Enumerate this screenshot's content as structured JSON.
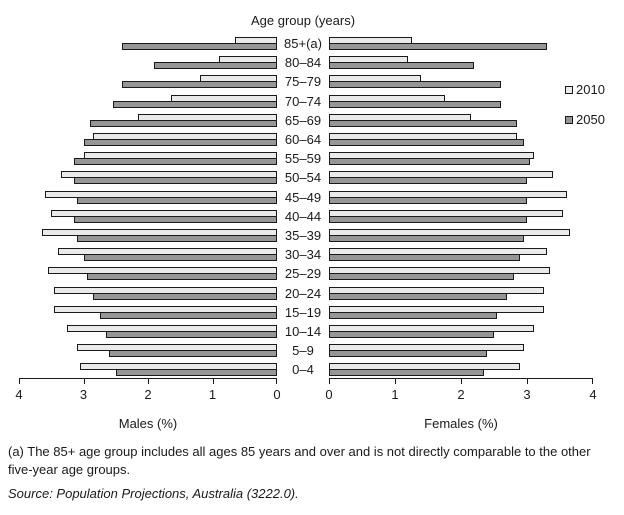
{
  "title": "Age group (years)",
  "colors": {
    "series_2010": "#eaeaea",
    "series_2050": "#969696",
    "bar_border": "#1a1a1a"
  },
  "legend": [
    {
      "label": "2010"
    },
    {
      "label": "2050"
    }
  ],
  "left_axis": {
    "title": "Males (%)",
    "ticks": [
      "4",
      "3",
      "2",
      "1",
      "0"
    ]
  },
  "right_axis": {
    "title": "Females (%)",
    "ticks": [
      "0",
      "1",
      "2",
      "3",
      "4"
    ]
  },
  "footnote": "(a) The 85+ age group includes all ages 85 years and over and is not directly comparable to the other five-year age groups.",
  "source": "Source: Population Projections, Australia (3222.0).",
  "chart_data": {
    "type": "bar",
    "subtype": "population-pyramid",
    "title": "Age group (years)",
    "unit": "% of total population",
    "xlim": [
      0,
      4
    ],
    "grid": false,
    "legend_position": "right",
    "categories": [
      "85+(a)",
      "80–84",
      "75–79",
      "70–74",
      "65–69",
      "60–64",
      "55–59",
      "50–54",
      "45–49",
      "40–44",
      "35–39",
      "30–34",
      "25–29",
      "20–24",
      "15–19",
      "10–14",
      "5–9",
      "0–4"
    ],
    "series": [
      {
        "name": "Males 2010",
        "side": "left",
        "values": [
          0.65,
          0.9,
          1.2,
          1.65,
          2.15,
          2.85,
          3.0,
          3.35,
          3.6,
          3.5,
          3.65,
          3.4,
          3.55,
          3.45,
          3.45,
          3.25,
          3.1,
          3.05
        ]
      },
      {
        "name": "Males 2050",
        "side": "left",
        "values": [
          2.4,
          1.9,
          2.4,
          2.55,
          2.9,
          3.0,
          3.15,
          3.15,
          3.1,
          3.15,
          3.1,
          3.0,
          2.95,
          2.85,
          2.75,
          2.65,
          2.6,
          2.5
        ]
      },
      {
        "name": "Females 2010",
        "side": "right",
        "values": [
          1.25,
          1.2,
          1.4,
          1.75,
          2.15,
          2.85,
          3.1,
          3.4,
          3.6,
          3.55,
          3.65,
          3.3,
          3.35,
          3.25,
          3.25,
          3.1,
          2.95,
          2.9
        ]
      },
      {
        "name": "Females 2050",
        "side": "right",
        "values": [
          3.3,
          2.2,
          2.6,
          2.6,
          2.85,
          2.95,
          3.05,
          3.0,
          3.0,
          3.0,
          2.95,
          2.9,
          2.8,
          2.7,
          2.55,
          2.5,
          2.4,
          2.35
        ]
      }
    ]
  }
}
